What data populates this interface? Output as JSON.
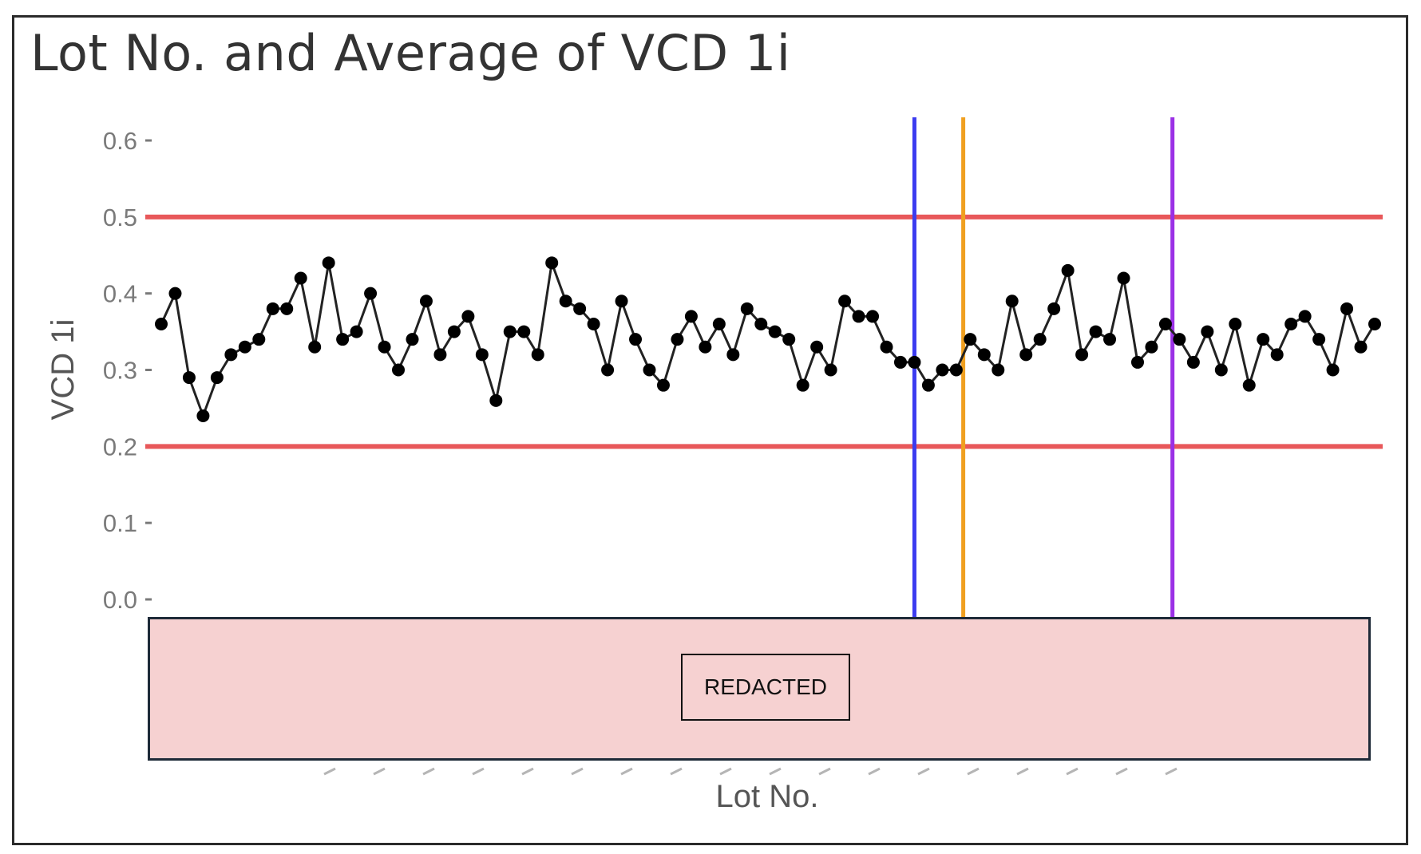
{
  "chart_data": {
    "type": "line",
    "title": "Lot No. and Average of VCD 1i",
    "xlabel": "Lot No.",
    "ylabel": "VCD 1i",
    "ylim": [
      0.0,
      0.6
    ],
    "yticks": [
      "0.0",
      "0.1",
      "0.2",
      "0.3",
      "0.4",
      "0.5",
      "0.6"
    ],
    "x_tick_labels": "redacted",
    "grid": false,
    "series": [
      {
        "color": "#000000",
        "values": [
          0.36,
          0.4,
          0.29,
          0.24,
          0.29,
          0.32,
          0.33,
          0.34,
          0.38,
          0.38,
          0.42,
          0.33,
          0.44,
          0.34,
          0.35,
          0.4,
          0.33,
          0.3,
          0.34,
          0.39,
          0.32,
          0.35,
          0.37,
          0.32,
          0.26,
          0.35,
          0.35,
          0.32,
          0.44,
          0.39,
          0.38,
          0.36,
          0.3,
          0.39,
          0.34,
          0.3,
          0.28,
          0.34,
          0.37,
          0.33,
          0.36,
          0.32,
          0.38,
          0.36,
          0.35,
          0.34,
          0.28,
          0.33,
          0.3,
          0.39,
          0.37,
          0.37,
          0.33,
          0.31,
          0.31,
          0.28,
          0.3,
          0.3,
          0.34,
          0.32,
          0.3,
          0.39,
          0.32,
          0.34,
          0.38,
          0.43,
          0.32,
          0.35,
          0.34,
          0.42,
          0.31,
          0.33,
          0.36,
          0.34,
          0.31,
          0.35,
          0.3,
          0.36,
          0.28,
          0.34,
          0.32,
          0.36,
          0.37,
          0.34,
          0.3,
          0.38,
          0.33,
          0.36
        ]
      }
    ],
    "reference_lines": {
      "horizontal": [
        {
          "y": 0.5,
          "color": "#e8585a"
        },
        {
          "y": 0.2,
          "color": "#e8585a"
        }
      ],
      "vertical": [
        {
          "at_point_index": 54,
          "color": "#3b3bf0"
        },
        {
          "at_point_index": 57.5,
          "color": "#f0a020"
        },
        {
          "at_point_index": 72.5,
          "color": "#9b30e6"
        }
      ]
    }
  },
  "redaction": {
    "label": "REDACTED"
  }
}
